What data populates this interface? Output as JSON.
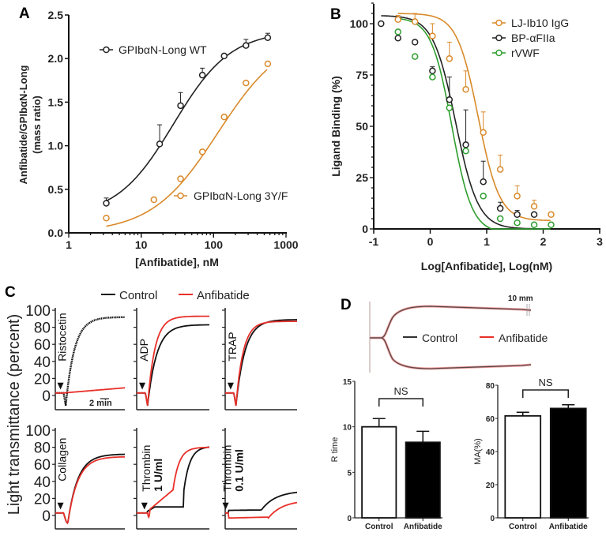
{
  "panels": {
    "A": "A",
    "B": "B",
    "C": "C",
    "D": "D"
  },
  "colors": {
    "black": "#222222",
    "orange": "#d98a2b",
    "green": "#2e9e2e",
    "red": "#e8302a",
    "teg_trace": "#6b4a48"
  },
  "chart_data": [
    {
      "id": "A",
      "type": "scatter",
      "xscale": "log",
      "title": "",
      "xlabel": "[Anfibatide], nM",
      "ylabel": "Anfibatide/GPIbαN-Long",
      "ylabel2": "(mass ratio)",
      "xlim": [
        1,
        1000
      ],
      "ylim": [
        0,
        2.5
      ],
      "xticks": [
        1,
        10,
        100,
        1000
      ],
      "xtick_labels": [
        "1",
        "10",
        "100",
        "1000"
      ],
      "yticks": [
        0,
        0.5,
        1.0,
        1.5,
        2.0,
        2.5
      ],
      "ytick_labels": [
        "0.0",
        "0.5",
        "1.0",
        "1.5",
        "2.0",
        "2.5"
      ],
      "series": [
        {
          "name": "GPIbαN-Long WT",
          "color": "black",
          "x": [
            3.3,
            18,
            35,
            70,
            140,
            280,
            560
          ],
          "y": [
            0.34,
            1.02,
            1.46,
            1.81,
            2.03,
            2.15,
            2.24
          ],
          "err": [
            0.06,
            0.22,
            0.15,
            0.08,
            0.02,
            0.07,
            0.05
          ],
          "fit": {
            "bottom": 0.18,
            "top": 2.32,
            "ec50": 28,
            "hill": 1.1
          }
        },
        {
          "name": "GPIbαN-Long 3Y/F",
          "color": "orange",
          "x": [
            3.3,
            15,
            35,
            70,
            140,
            280,
            560
          ],
          "y": [
            0.17,
            0.38,
            0.62,
            0.93,
            1.33,
            1.72,
            1.94
          ],
          "err": [
            0,
            0,
            0,
            0,
            0,
            0,
            0
          ],
          "fit": {
            "bottom": 0.0,
            "top": 2.3,
            "ec50": 115,
            "hill": 0.95
          }
        }
      ],
      "legend": [
        "GPIbαN-Long WT",
        "GPIbαN-Long 3Y/F"
      ]
    },
    {
      "id": "B",
      "type": "scatter",
      "title": "",
      "xlabel": "Log[Anfibatide], Log(nM)",
      "ylabel": "Ligand Binding (%)",
      "xlim": [
        -1,
        3
      ],
      "ylim": [
        0,
        110
      ],
      "xticks": [
        -1,
        0,
        1,
        2,
        3
      ],
      "xtick_labels": [
        "-1",
        "0",
        "1",
        "2",
        "3"
      ],
      "yticks": [
        0,
        25,
        50,
        75,
        100
      ],
      "ytick_labels": [
        "0",
        "25",
        "50",
        "75",
        "100"
      ],
      "legend_position": "top-right",
      "series": [
        {
          "name": "LJ-Ib10 IgG",
          "color": "orange",
          "x": [
            -0.57,
            -0.27,
            0.04,
            0.34,
            0.63,
            0.94,
            1.24,
            1.54,
            1.84,
            2.14
          ],
          "y": [
            102,
            101,
            94,
            83,
            68,
            47,
            29,
            16,
            11,
            7
          ],
          "err": [
            2,
            4,
            6,
            8,
            9,
            10,
            7,
            5,
            3,
            0
          ],
          "fit": {
            "bottom": 4,
            "top": 105,
            "logic50": 0.85,
            "hill": 1.0
          }
        },
        {
          "name": "BP-αFIIa",
          "color": "black",
          "x": [
            -0.87,
            -0.57,
            -0.27,
            0.04,
            0.34,
            0.63,
            0.94,
            1.24,
            1.54,
            1.84
          ],
          "y": [
            100,
            93,
            91,
            77,
            63,
            41,
            23,
            10,
            7,
            7
          ],
          "err": [
            0,
            0,
            0,
            2,
            11,
            17,
            10,
            3,
            2,
            0
          ],
          "fit": {
            "bottom": 0,
            "top": 104,
            "logic50": 0.45,
            "hill": 0.95
          }
        },
        {
          "name": "rVWF",
          "color": "green",
          "x": [
            -0.57,
            -0.27,
            0.04,
            0.34,
            0.63,
            0.94,
            1.24,
            1.54,
            1.84,
            2.14
          ],
          "y": [
            96,
            84,
            74,
            59,
            38,
            16,
            5,
            3,
            2,
            2
          ],
          "err": [
            0,
            0,
            0,
            0,
            0,
            0,
            0,
            0,
            0,
            0
          ],
          "fit": {
            "bottom": -2,
            "top": 103,
            "logic50": 0.38,
            "hill": 1.05
          }
        }
      ],
      "legend": [
        "LJ-Ib10 IgG",
        "BP-αFIIa",
        "rVWF"
      ]
    },
    {
      "id": "C",
      "type": "line",
      "ylabel": "Light transmittance (percent)",
      "ylim": [
        -15,
        100
      ],
      "yticks": [
        0,
        20,
        40,
        60,
        80,
        100
      ],
      "ytick_labels": [
        "0",
        "20",
        "40",
        "60",
        "80",
        "100"
      ],
      "scalebar": "2 min",
      "legend": [
        "Control",
        "Anfibatide"
      ],
      "legend_position": "top",
      "subplots": [
        {
          "agonist": "Ristocetin",
          "agonist2": "",
          "control_final": 92,
          "anfibatide_final": 9,
          "onset": 0.12
        },
        {
          "agonist": "ADP",
          "agonist2": "",
          "control_final": 83,
          "anfibatide_final": 93,
          "onset": 0.12
        },
        {
          "agonist": "TRAP",
          "agonist2": "",
          "control_final": 89,
          "anfibatide_final": 87,
          "onset": 0.12
        },
        {
          "agonist": "Collagen",
          "agonist2": "",
          "control_final": 72,
          "anfibatide_final": 69,
          "onset": 0.12
        },
        {
          "agonist": "Thrombin",
          "agonist2": "1 U/ml",
          "control_final": 81,
          "anfibatide_final": 80,
          "onset": 0.15
        },
        {
          "agonist": "Thrombin",
          "agonist2": "0.1 U/ml",
          "control_final": 29,
          "anfibatide_final": 18,
          "onset": 0.05
        }
      ]
    },
    {
      "id": "D-trace",
      "type": "line",
      "scalebar": "10 mm",
      "legend": [
        "Control",
        "Anfibatide"
      ]
    },
    {
      "id": "D-Rtime",
      "type": "bar",
      "categories": [
        "Control",
        "Anfibatide"
      ],
      "values": [
        10.0,
        8.3
      ],
      "err": [
        0.9,
        1.2
      ],
      "fills": [
        "#ffffff",
        "#000000"
      ],
      "ylabel": "R time",
      "ylim": [
        0,
        15
      ],
      "yticks": [
        0,
        5,
        10,
        15
      ],
      "ytick_labels": [
        "0",
        "5",
        "10",
        "15"
      ],
      "annotation": "NS"
    },
    {
      "id": "D-MA",
      "type": "bar",
      "categories": [
        "Control",
        "Anfibatide"
      ],
      "values": [
        61.5,
        66.0
      ],
      "err": [
        2.2,
        2.2
      ],
      "fills": [
        "#ffffff",
        "#000000"
      ],
      "ylabel": "MA(%)",
      "ylim": [
        0,
        80
      ],
      "yticks": [
        0,
        20,
        40,
        60,
        80
      ],
      "ytick_labels": [
        "0",
        "20",
        "40",
        "60",
        "80"
      ],
      "annotation": "NS"
    }
  ]
}
